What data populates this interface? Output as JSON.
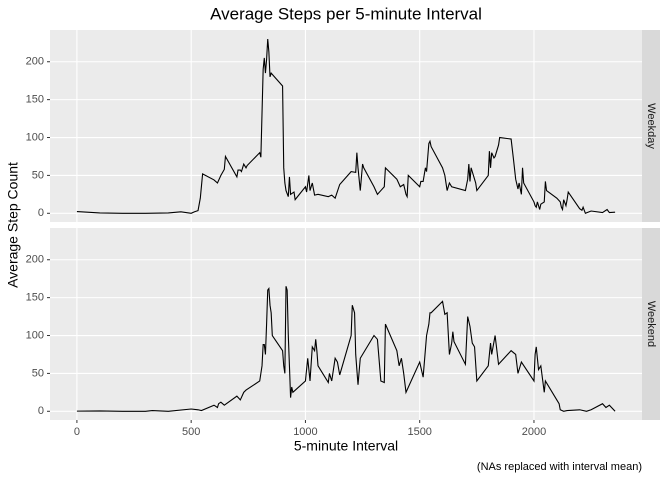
{
  "chart_data": {
    "type": "line",
    "title": "Average Steps per 5-minute Interval",
    "xlabel": "5-minute Interval",
    "ylabel": "Average Step Count",
    "caption": "(NAs replaced with interval mean)",
    "xlim": [
      -117.75,
      2472.75
    ],
    "xticks": [
      0,
      500,
      1000,
      1500,
      2000
    ],
    "ylim": [
      -11.5,
      241.9
    ],
    "yticks": [
      0,
      50,
      100,
      150,
      200
    ],
    "grid": true,
    "facets": "rows",
    "series": [
      {
        "name": "Weekday",
        "color": "#000000",
        "x": [
          0,
          100,
          200,
          300,
          400,
          455,
          500,
          515,
          530,
          540,
          550,
          600,
          615,
          630,
          645,
          650,
          700,
          705,
          715,
          720,
          730,
          740,
          745,
          800,
          805,
          815,
          820,
          825,
          830,
          835,
          840,
          845,
          850,
          900,
          905,
          910,
          915,
          925,
          930,
          935,
          950,
          955,
          1000,
          1005,
          1015,
          1020,
          1030,
          1040,
          1055,
          1100,
          1115,
          1130,
          1150,
          1200,
          1220,
          1225,
          1230,
          1240,
          1250,
          1255,
          1300,
          1315,
          1330,
          1345,
          1350,
          1400,
          1415,
          1430,
          1440,
          1445,
          1450,
          1500,
          1505,
          1515,
          1525,
          1530,
          1540,
          1545,
          1550,
          1600,
          1610,
          1620,
          1630,
          1640,
          1700,
          1710,
          1715,
          1720,
          1725,
          1730,
          1740,
          1745,
          1750,
          1800,
          1805,
          1810,
          1815,
          1825,
          1830,
          1845,
          1850,
          1900,
          1910,
          1920,
          1930,
          1935,
          1945,
          1950,
          1955,
          2000,
          2005,
          2010,
          2015,
          2025,
          2030,
          2045,
          2050,
          2055,
          2100,
          2115,
          2120,
          2125,
          2130,
          2140,
          2145,
          2150,
          2200,
          2210,
          2215,
          2225,
          2250,
          2300,
          2320,
          2330,
          2355
        ],
        "values": [
          2.3,
          0.4,
          0,
          0,
          0.5,
          2,
          0,
          2,
          3.5,
          20,
          52,
          44,
          40,
          50,
          58,
          75,
          48,
          57,
          57,
          55,
          65,
          60,
          63,
          80,
          74,
          190,
          205,
          185,
          203,
          230,
          213,
          180,
          185,
          168,
          60,
          40,
          30,
          22,
          48,
          25,
          28,
          18,
          35,
          28,
          50,
          30,
          40,
          24,
          25,
          22,
          24,
          20,
          38,
          55,
          54,
          80,
          60,
          30,
          65,
          60,
          35,
          25,
          30,
          35,
          60,
          45,
          35,
          38,
          25,
          22,
          50,
          35,
          42,
          42,
          60,
          55,
          92,
          95,
          88,
          60,
          50,
          30,
          40,
          35,
          30,
          45,
          65,
          42,
          60,
          55,
          45,
          40,
          30,
          50,
          82,
          60,
          80,
          73,
          75,
          90,
          100,
          98,
          72,
          45,
          32,
          40,
          25,
          60,
          40,
          15,
          10,
          8,
          15,
          5,
          12,
          15,
          42,
          30,
          20,
          15,
          8,
          5,
          18,
          10,
          18,
          28,
          6,
          4,
          8,
          0,
          3,
          1,
          5,
          1,
          1.5
        ]
      },
      {
        "name": "Weekend",
        "color": "#000000",
        "x": [
          0,
          100,
          200,
          300,
          330,
          400,
          500,
          530,
          545,
          600,
          615,
          620,
          630,
          645,
          700,
          715,
          730,
          740,
          800,
          810,
          815,
          820,
          825,
          830,
          835,
          840,
          845,
          850,
          855,
          900,
          905,
          910,
          915,
          920,
          925,
          930,
          935,
          940,
          945,
          1000,
          1010,
          1020,
          1030,
          1040,
          1045,
          1050,
          1055,
          1100,
          1105,
          1115,
          1130,
          1140,
          1150,
          1200,
          1205,
          1215,
          1220,
          1230,
          1240,
          1300,
          1315,
          1330,
          1345,
          1350,
          1400,
          1410,
          1420,
          1430,
          1440,
          1500,
          1515,
          1530,
          1540,
          1545,
          1550,
          1600,
          1610,
          1620,
          1630,
          1640,
          1645,
          1650,
          1700,
          1710,
          1720,
          1730,
          1740,
          1750,
          1800,
          1810,
          1815,
          1830,
          1845,
          1900,
          1920,
          1930,
          1945,
          2000,
          2005,
          2010,
          2015,
          2020,
          2030,
          2045,
          2050,
          2100,
          2110,
          2115,
          2130,
          2145,
          2200,
          2230,
          2250,
          2300,
          2315,
          2330,
          2355
        ],
        "values": [
          0.2,
          0.5,
          0,
          0,
          1,
          0,
          3,
          2,
          1,
          8,
          5,
          10,
          12,
          8,
          20,
          15,
          25,
          28,
          40,
          60,
          88,
          88,
          75,
          115,
          160,
          162,
          140,
          130,
          100,
          80,
          60,
          50,
          165,
          160,
          100,
          60,
          18,
          32,
          25,
          40,
          70,
          40,
          85,
          80,
          95,
          80,
          60,
          38,
          50,
          40,
          70,
          65,
          48,
          100,
          140,
          130,
          75,
          35,
          70,
          100,
          95,
          40,
          38,
          115,
          80,
          60,
          70,
          50,
          25,
          65,
          45,
          100,
          115,
          130,
          130,
          145,
          128,
          130,
          75,
          90,
          105,
          92,
          62,
          125,
          112,
          90,
          85,
          40,
          60,
          90,
          75,
          100,
          62,
          80,
          75,
          50,
          65,
          40,
          75,
          85,
          70,
          55,
          60,
          25,
          40,
          15,
          10,
          2,
          0,
          1,
          2,
          0,
          2,
          10,
          5,
          8,
          0
        ]
      }
    ]
  }
}
